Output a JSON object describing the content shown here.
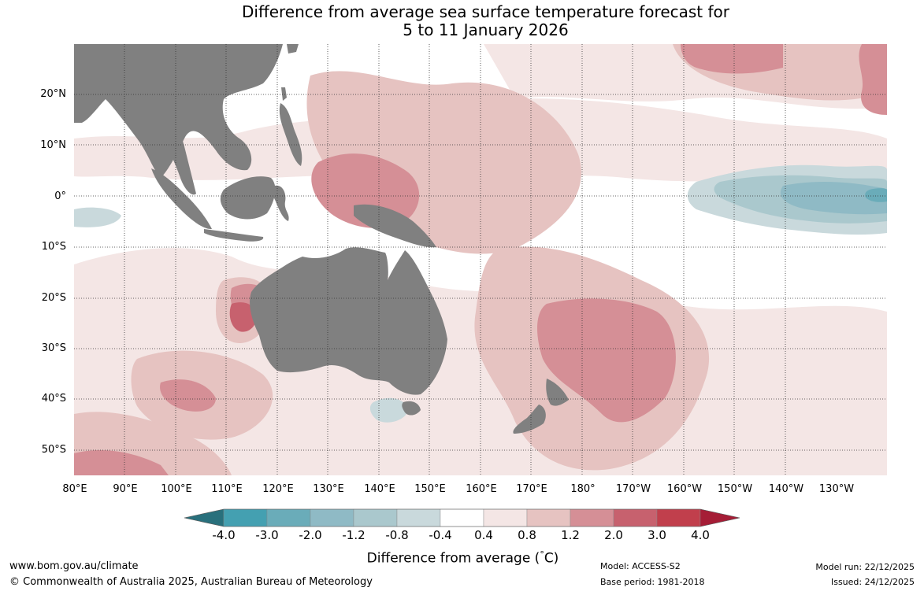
{
  "title": {
    "line1": "Difference from average sea surface temperature forecast for",
    "line2": "5 to 11 January 2026"
  },
  "map": {
    "lat_labels": [
      "20°N",
      "10°N",
      "0°",
      "10°S",
      "20°S",
      "30°S",
      "40°S",
      "50°S"
    ],
    "lon_labels": [
      "80°E",
      "90°E",
      "100°E",
      "110°E",
      "120°E",
      "130°E",
      "140°E",
      "150°E",
      "160°E",
      "170°E",
      "180°",
      "170°W",
      "160°W",
      "150°W",
      "140°W",
      "130°W"
    ],
    "land_color": "#808080",
    "grid_style": "dotted"
  },
  "colorbar": {
    "ticks": [
      "-4.0",
      "-3.0",
      "-2.0",
      "-1.2",
      "-0.8",
      "-0.4",
      "0.4",
      "0.8",
      "1.2",
      "2.0",
      "3.0",
      "4.0"
    ],
    "colors": [
      "#29707c",
      "#44a0b1",
      "#6aacb9",
      "#8fbac5",
      "#aac8cd",
      "#c9d9dc",
      "#ffffff",
      "#f4e6e5",
      "#e6c3c1",
      "#d58f96",
      "#c7616e",
      "#c13f4c",
      "#a51d36"
    ],
    "label": "Difference from average (",
    "label_unit": "C)",
    "label_degree": "°"
  },
  "footer": {
    "website": "www.bom.gov.au/climate",
    "copyright": "© Commonwealth of Australia 2025, Australian Bureau of Meteorology",
    "model": "Model: ACCESS-S2",
    "base_period": "Base period: 1981-2018",
    "model_run": "Model run: 22/12/2025",
    "issued": "Issued: 24/12/2025"
  }
}
